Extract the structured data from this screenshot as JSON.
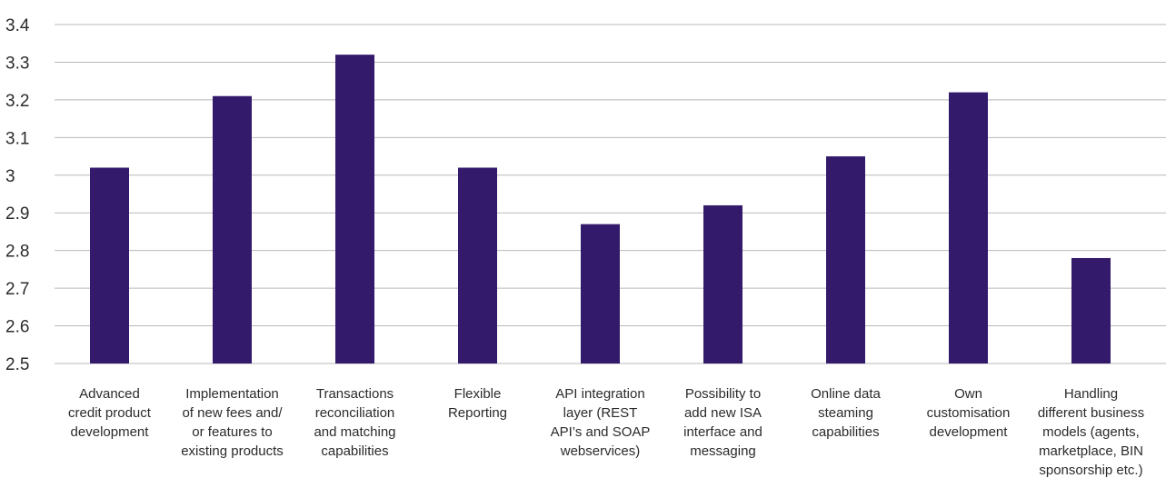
{
  "chart_data": {
    "type": "bar",
    "title": "",
    "xlabel": "",
    "ylabel": "",
    "ylim": [
      2.5,
      3.4
    ],
    "yticks": [
      "2.5",
      "2.6",
      "2.7",
      "2.8",
      "2.9",
      "3",
      "3.1",
      "3.2",
      "3.3",
      "3.4"
    ],
    "grid": true,
    "bar_color": "#341a6b",
    "categories": [
      [
        "Advanced",
        "credit product",
        "development"
      ],
      [
        "Implementation",
        "of new fees and/",
        "or features to",
        "existing products"
      ],
      [
        "Transactions",
        "reconciliation",
        "and matching",
        "capabilities"
      ],
      [
        "Flexible",
        "Reporting"
      ],
      [
        "API integration",
        "layer (REST",
        "API’s and SOAP",
        "webservices)"
      ],
      [
        "Possibility to",
        "add new ISA",
        "interface and",
        "messaging"
      ],
      [
        "Online data",
        "steaming",
        "capabilities"
      ],
      [
        "Own",
        "customisation",
        "development"
      ],
      [
        "Handling",
        "different business",
        "models (agents,",
        "marketplace, BIN",
        "sponsorship etc.)"
      ]
    ],
    "values": [
      3.02,
      3.21,
      3.32,
      3.02,
      2.87,
      2.92,
      3.05,
      3.22,
      2.78
    ]
  }
}
